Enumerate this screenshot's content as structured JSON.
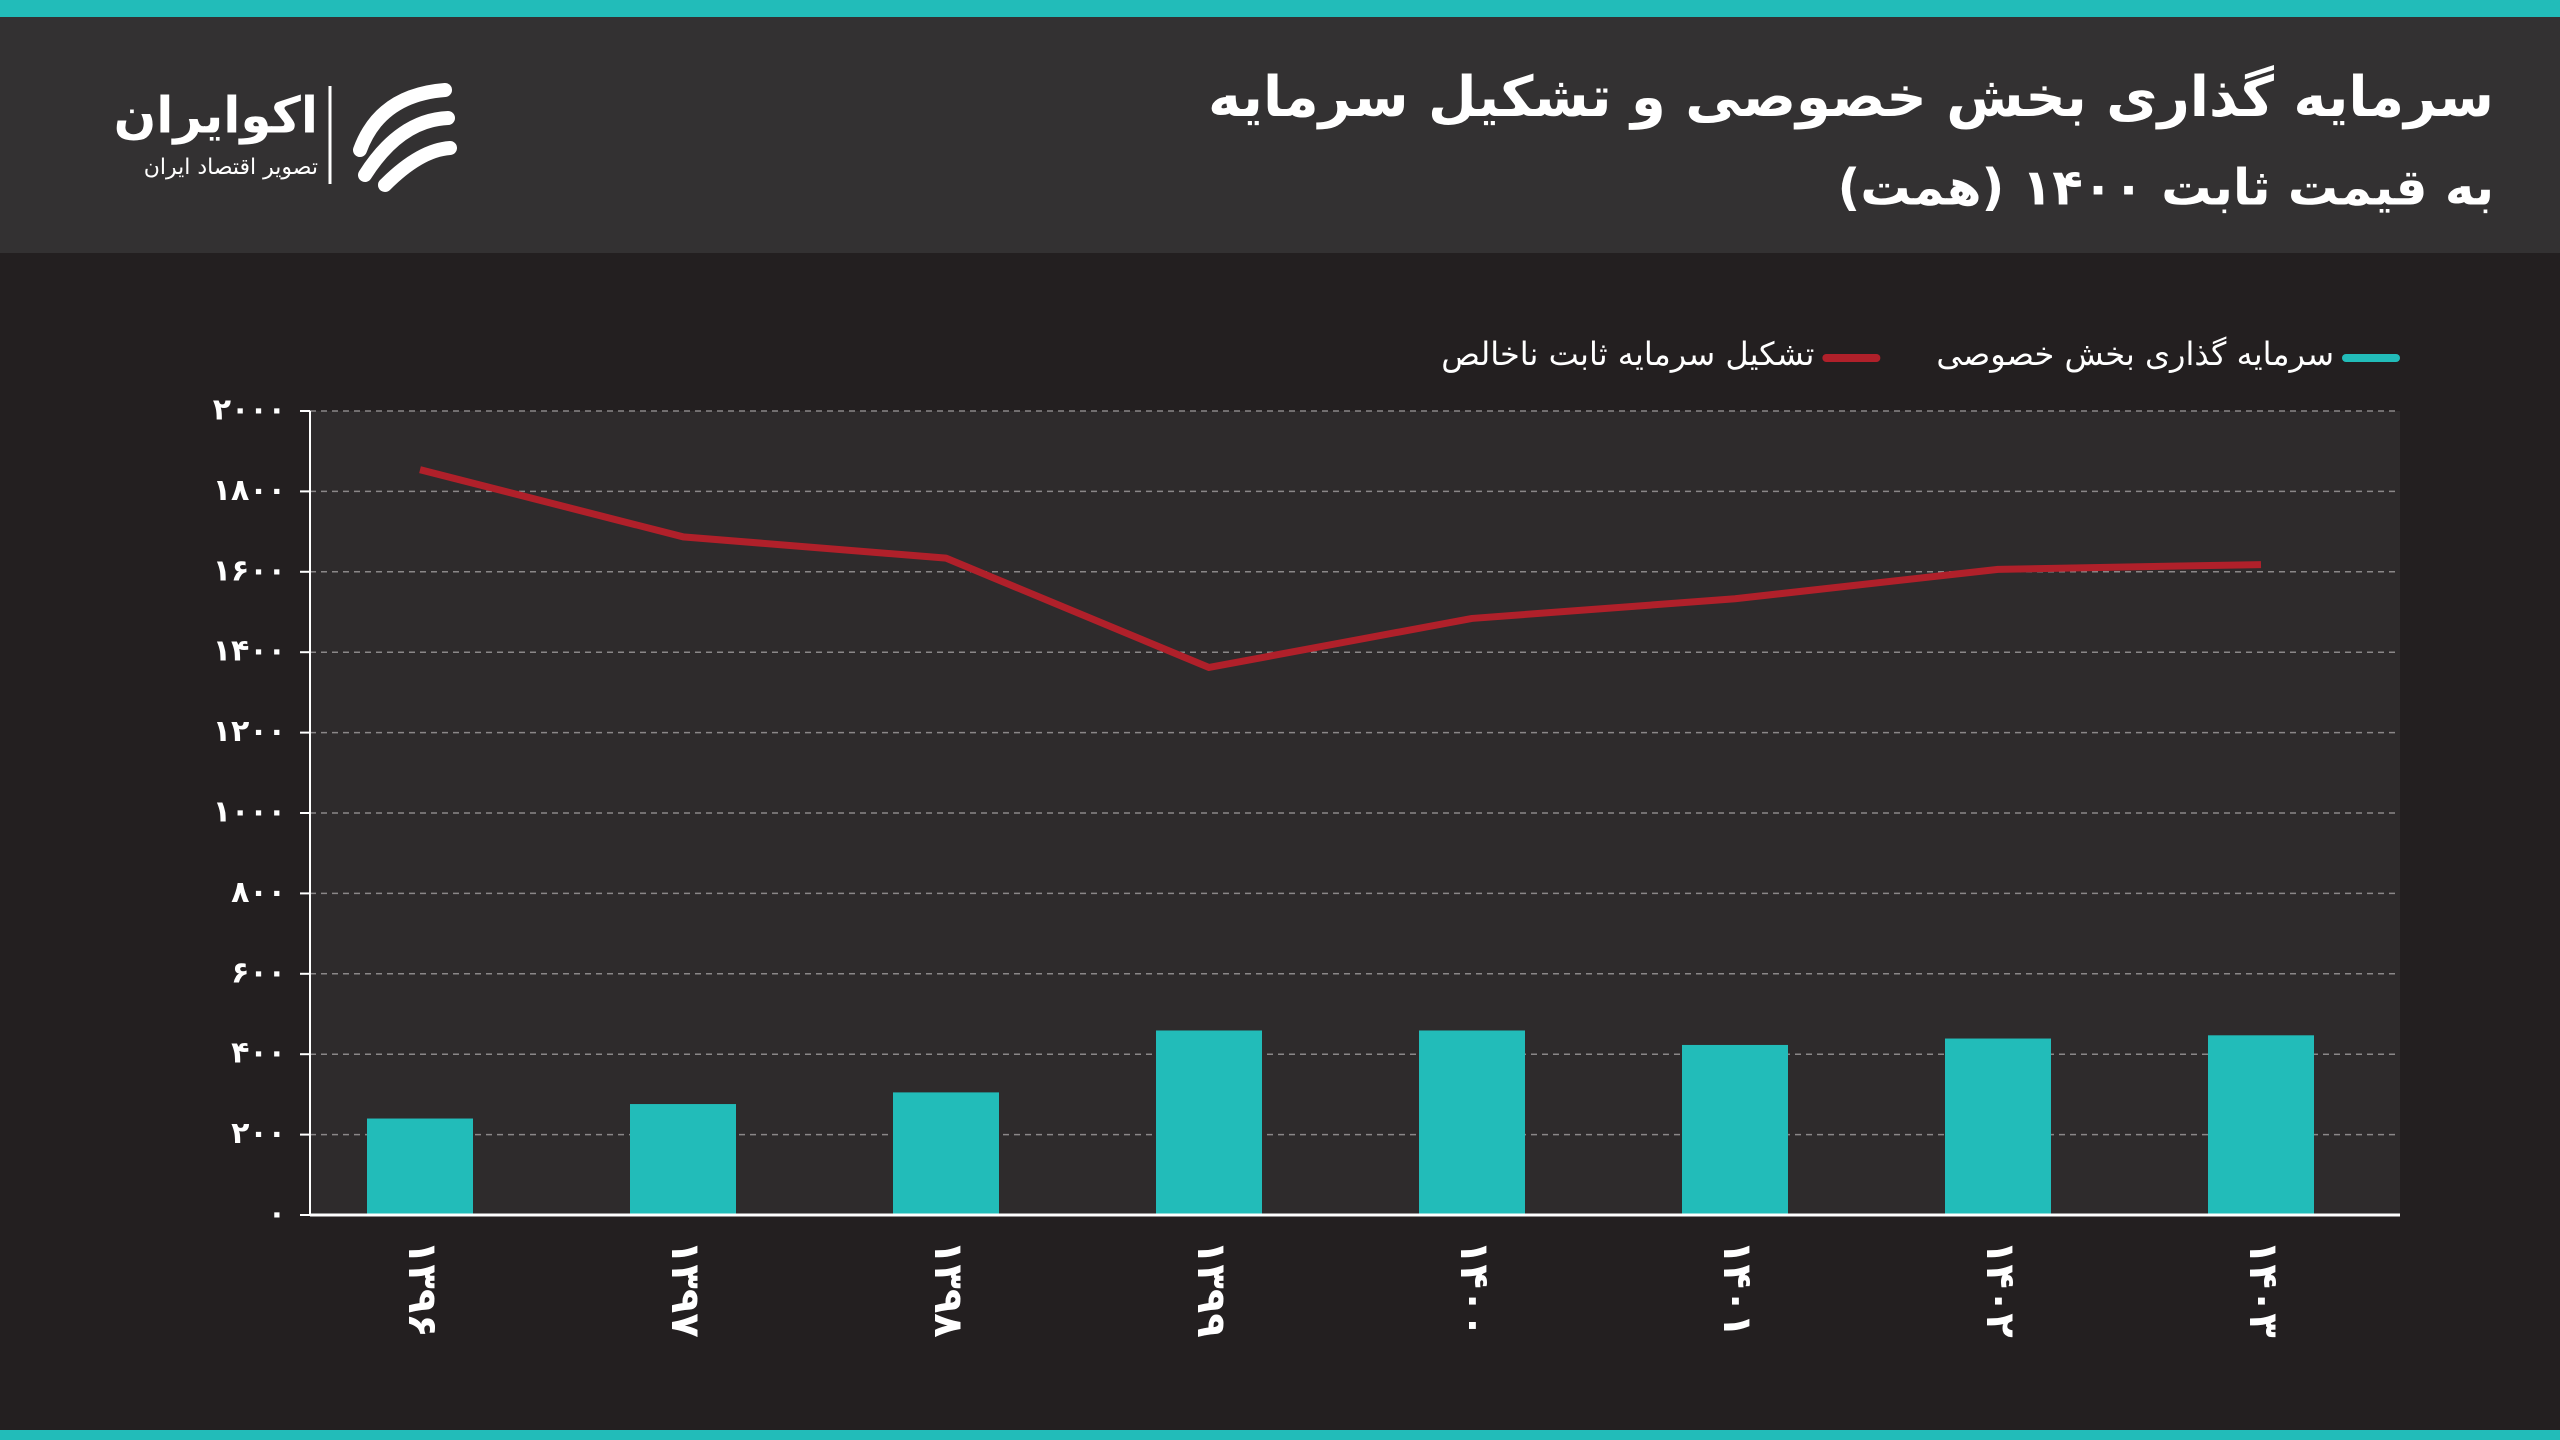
{
  "chart_data": {
    "type": "combo",
    "title": "سرمایه گذاری بخش خصوصی و تشکیل سرمایه",
    "subtitle": "به قیمت ثابت ۱۴۰۰ (همت)",
    "categories": [
      "۱۳۹۶",
      "۱۳۹۷",
      "۱۳۹۸",
      "۱۳۹۹",
      "۱۴۰۰",
      "۱۴۰۱",
      "۱۴۰۲",
      "۱۴۰۳"
    ],
    "series": [
      {
        "name": "سرمایه گذاری بخش خصوصی",
        "type": "bar",
        "color": "#22bcb9",
        "values": [
          240,
          276,
          305,
          459,
          459,
          423,
          439,
          447
        ]
      },
      {
        "name": "تشکیل سرمایه ثابت ناخالص",
        "type": "line",
        "color": "#b0202a",
        "values": [
          1854,
          1687,
          1634,
          1362,
          1484,
          1533,
          1606,
          1618
        ]
      }
    ],
    "ylim": [
      0,
      2000
    ],
    "yticks": [
      {
        "value": 0,
        "label": "۰"
      },
      {
        "value": 200,
        "label": "۲۰۰"
      },
      {
        "value": 400,
        "label": "۴۰۰"
      },
      {
        "value": 600,
        "label": "۶۰۰"
      },
      {
        "value": 800,
        "label": "۸۰۰"
      },
      {
        "value": 1000,
        "label": "۱۰۰۰"
      },
      {
        "value": 1200,
        "label": "۱۲۰۰"
      },
      {
        "value": 1400,
        "label": "۱۴۰۰"
      },
      {
        "value": 1600,
        "label": "۱۶۰۰"
      },
      {
        "value": 1800,
        "label": "۱۸۰۰"
      },
      {
        "value": 2000,
        "label": "۲۰۰۰"
      }
    ],
    "grid": true,
    "legend": "top-right"
  },
  "logo": {
    "name": "اکوایران",
    "tagline": "تصویر اقتصاد ایران"
  }
}
